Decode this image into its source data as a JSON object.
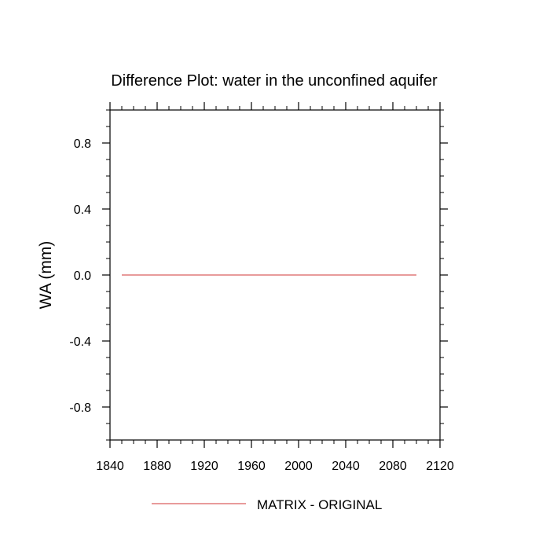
{
  "chart_data": {
    "type": "line",
    "title": "Difference Plot: water in the unconfined aquifer",
    "xlabel": "",
    "ylabel": "WA  (mm)",
    "xlim": [
      1840,
      2120
    ],
    "ylim": [
      -1.0,
      1.0
    ],
    "x_ticks": [
      1840,
      1880,
      1920,
      1960,
      2000,
      2040,
      2080,
      2120
    ],
    "x_tick_labels": [
      "1840",
      "1880",
      "1920",
      "1960",
      "2000",
      "2040",
      "2080",
      "2120"
    ],
    "y_ticks": [
      0.8,
      0.4,
      0.0,
      -0.4,
      -0.8
    ],
    "y_tick_labels": [
      "0.8",
      "0.4",
      "0.0",
      "-0.4",
      "-0.8"
    ],
    "grid": false,
    "legend_position": "bottom",
    "series": [
      {
        "name": "MATRIX - ORIGINAL",
        "color": "#e07a7a",
        "x": [
          1850,
          1900,
          1950,
          2000,
          2050,
          2100
        ],
        "y": [
          0,
          0,
          0,
          0,
          0,
          0
        ]
      }
    ]
  }
}
